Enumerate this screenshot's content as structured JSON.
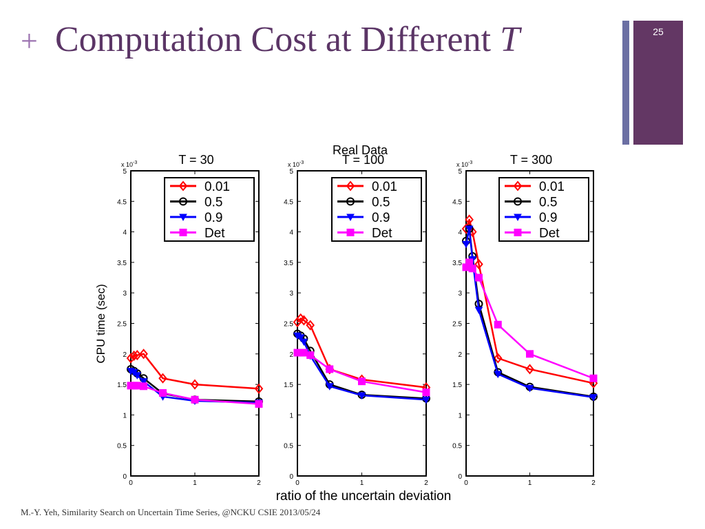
{
  "slide": {
    "plus": "+",
    "title": "Computation Cost at Different",
    "title_var": "T",
    "number": "25",
    "footer": "M.-Y. Yeh, Similarity Search on Uncertain Time Series,  @NCKU CSIE 2013/05/24",
    "colors": {
      "title": "#5b3566",
      "plus": "#9b72b0",
      "accent_bar": "#633764",
      "thin_bar": "#6b6fa3"
    }
  },
  "figure": {
    "suptitle": "Real Data",
    "xlabel": "ratio of the uncertain deviation",
    "ylabel": "CPU time (sec)",
    "exponent": "x 10",
    "exponent_power": "-3"
  },
  "chart_data": [
    {
      "type": "line",
      "title": "T = 30",
      "xlim": [
        0,
        2
      ],
      "ylim": [
        0,
        5
      ],
      "xticks": [
        "0",
        "1",
        "2"
      ],
      "yticks": [
        "0",
        "0.5",
        "1",
        "1.5",
        "2",
        "2.5",
        "3",
        "3.5",
        "4",
        "4.5",
        "5"
      ],
      "x": [
        0,
        0.05,
        0.1,
        0.2,
        0.5,
        1,
        2
      ],
      "legend": "top-right",
      "series": [
        {
          "name": "0.01",
          "color": "#ff0000",
          "marker": "diamond",
          "values": [
            1.93,
            1.97,
            1.98,
            2.0,
            1.6,
            1.5,
            1.43
          ]
        },
        {
          "name": "0.5",
          "color": "#000000",
          "marker": "circle",
          "values": [
            1.75,
            1.72,
            1.68,
            1.6,
            1.35,
            1.25,
            1.22
          ]
        },
        {
          "name": "0.9",
          "color": "#0000ff",
          "marker": "triangle-down",
          "values": [
            1.72,
            1.7,
            1.65,
            1.55,
            1.3,
            1.23,
            1.2
          ]
        },
        {
          "name": "Det",
          "color": "#ff00ff",
          "marker": "square",
          "values": [
            1.48,
            1.48,
            1.48,
            1.47,
            1.36,
            1.25,
            1.18
          ]
        }
      ]
    },
    {
      "type": "line",
      "title": "T = 100",
      "xlim": [
        0,
        2
      ],
      "ylim": [
        0,
        5
      ],
      "xticks": [
        "0",
        "1",
        "2"
      ],
      "yticks": [
        "0",
        "0.5",
        "1",
        "1.5",
        "2",
        "2.5",
        "3",
        "3.5",
        "4",
        "4.5",
        "5"
      ],
      "x": [
        0,
        0.05,
        0.1,
        0.2,
        0.5,
        1,
        2
      ],
      "legend": "top-right",
      "series": [
        {
          "name": "0.01",
          "color": "#ff0000",
          "marker": "diamond",
          "values": [
            2.52,
            2.58,
            2.55,
            2.47,
            1.75,
            1.58,
            1.45
          ]
        },
        {
          "name": "0.5",
          "color": "#000000",
          "marker": "circle",
          "values": [
            2.33,
            2.3,
            2.25,
            2.05,
            1.5,
            1.33,
            1.27
          ]
        },
        {
          "name": "0.9",
          "color": "#0000ff",
          "marker": "triangle-down",
          "values": [
            2.3,
            2.27,
            2.2,
            1.97,
            1.47,
            1.32,
            1.25
          ]
        },
        {
          "name": "Det",
          "color": "#ff00ff",
          "marker": "square",
          "values": [
            2.02,
            2.02,
            2.02,
            1.98,
            1.75,
            1.55,
            1.37
          ]
        }
      ]
    },
    {
      "type": "line",
      "title": "T = 300",
      "xlim": [
        0,
        2
      ],
      "ylim": [
        0,
        5
      ],
      "xticks": [
        "0",
        "1",
        "2"
      ],
      "yticks": [
        "0",
        "0.5",
        "1",
        "1.5",
        "2",
        "2.5",
        "3",
        "3.5",
        "4",
        "4.5",
        "5"
      ],
      "x": [
        0,
        0.05,
        0.1,
        0.2,
        0.5,
        1,
        2
      ],
      "legend": "top-right",
      "series": [
        {
          "name": "0.01",
          "color": "#ff0000",
          "marker": "diamond",
          "values": [
            4.05,
            4.2,
            4.0,
            3.47,
            1.93,
            1.75,
            1.52
          ]
        },
        {
          "name": "0.5",
          "color": "#000000",
          "marker": "circle",
          "values": [
            3.85,
            4.05,
            3.6,
            2.82,
            1.7,
            1.46,
            1.3
          ]
        },
        {
          "name": "0.9",
          "color": "#0000ff",
          "marker": "triangle-down",
          "values": [
            3.8,
            4.05,
            3.55,
            2.72,
            1.67,
            1.44,
            1.29
          ]
        },
        {
          "name": "Det",
          "color": "#ff00ff",
          "marker": "square",
          "values": [
            3.42,
            3.5,
            3.4,
            3.25,
            2.48,
            2.0,
            1.6
          ]
        }
      ]
    }
  ]
}
